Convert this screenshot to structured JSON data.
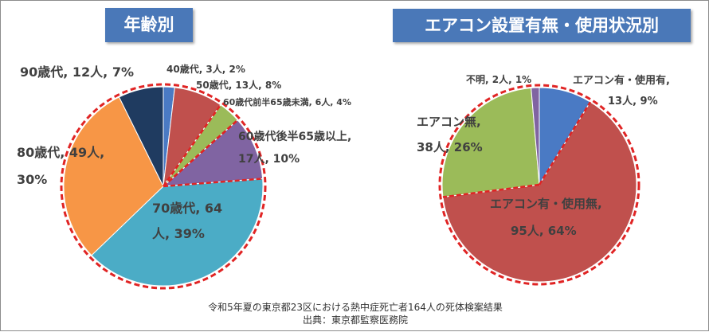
{
  "titles": {
    "left": "年齢別",
    "right": "エアコン設置有無・使用状況別"
  },
  "footer": {
    "line1": "令和5年夏の東京都23区における熱中症死亡者164人の死体検案結果",
    "line2": "出典：東京都監察医務院"
  },
  "chart_data": [
    {
      "type": "pie",
      "title": "年齢別",
      "slices": [
        {
          "label_lines": [
            "40歳代, 3人, 2%"
          ],
          "value": 3,
          "percent": 2,
          "color": "#4a7ac4"
        },
        {
          "label_lines": [
            "50歳代, 13人, 8%"
          ],
          "value": 13,
          "percent": 8,
          "color": "#c0504d"
        },
        {
          "label_lines": [
            "60歳代前半65歳未満, 6人, 4%"
          ],
          "value": 6,
          "percent": 4,
          "color": "#9bbb59"
        },
        {
          "label_lines": [
            "60歳代後半65歳以上,",
            "17人, 10%"
          ],
          "value": 17,
          "percent": 10,
          "color": "#8064a2"
        },
        {
          "label_lines": [
            "70歳代, 64",
            "人, 39%"
          ],
          "value": 64,
          "percent": 39,
          "color": "#4bacc6"
        },
        {
          "label_lines": [
            "80歳代, 49人,",
            "30%"
          ],
          "value": 49,
          "percent": 30,
          "color": "#f79646"
        },
        {
          "label_lines": [
            "90歳代, 12人, 7%"
          ],
          "value": 12,
          "percent": 7,
          "color": "#1f3b60"
        }
      ]
    },
    {
      "type": "pie",
      "title": "エアコン設置有無・使用状況別",
      "slices": [
        {
          "label_lines": [
            "エアコン有・使用有,",
            "13人, 9%"
          ],
          "value": 13,
          "percent": 9,
          "color": "#4a7ac4"
        },
        {
          "label_lines": [
            "エアコン有・使用無,",
            "95人, 64%"
          ],
          "value": 95,
          "percent": 64,
          "color": "#c0504d"
        },
        {
          "label_lines": [
            "エアコン無,",
            "38人, 26%"
          ],
          "value": 38,
          "percent": 26,
          "color": "#9bbb59"
        },
        {
          "label_lines": [
            "不明, 2人, 1%"
          ],
          "value": 2,
          "percent": 1,
          "color": "#8064a2"
        }
      ]
    }
  ]
}
